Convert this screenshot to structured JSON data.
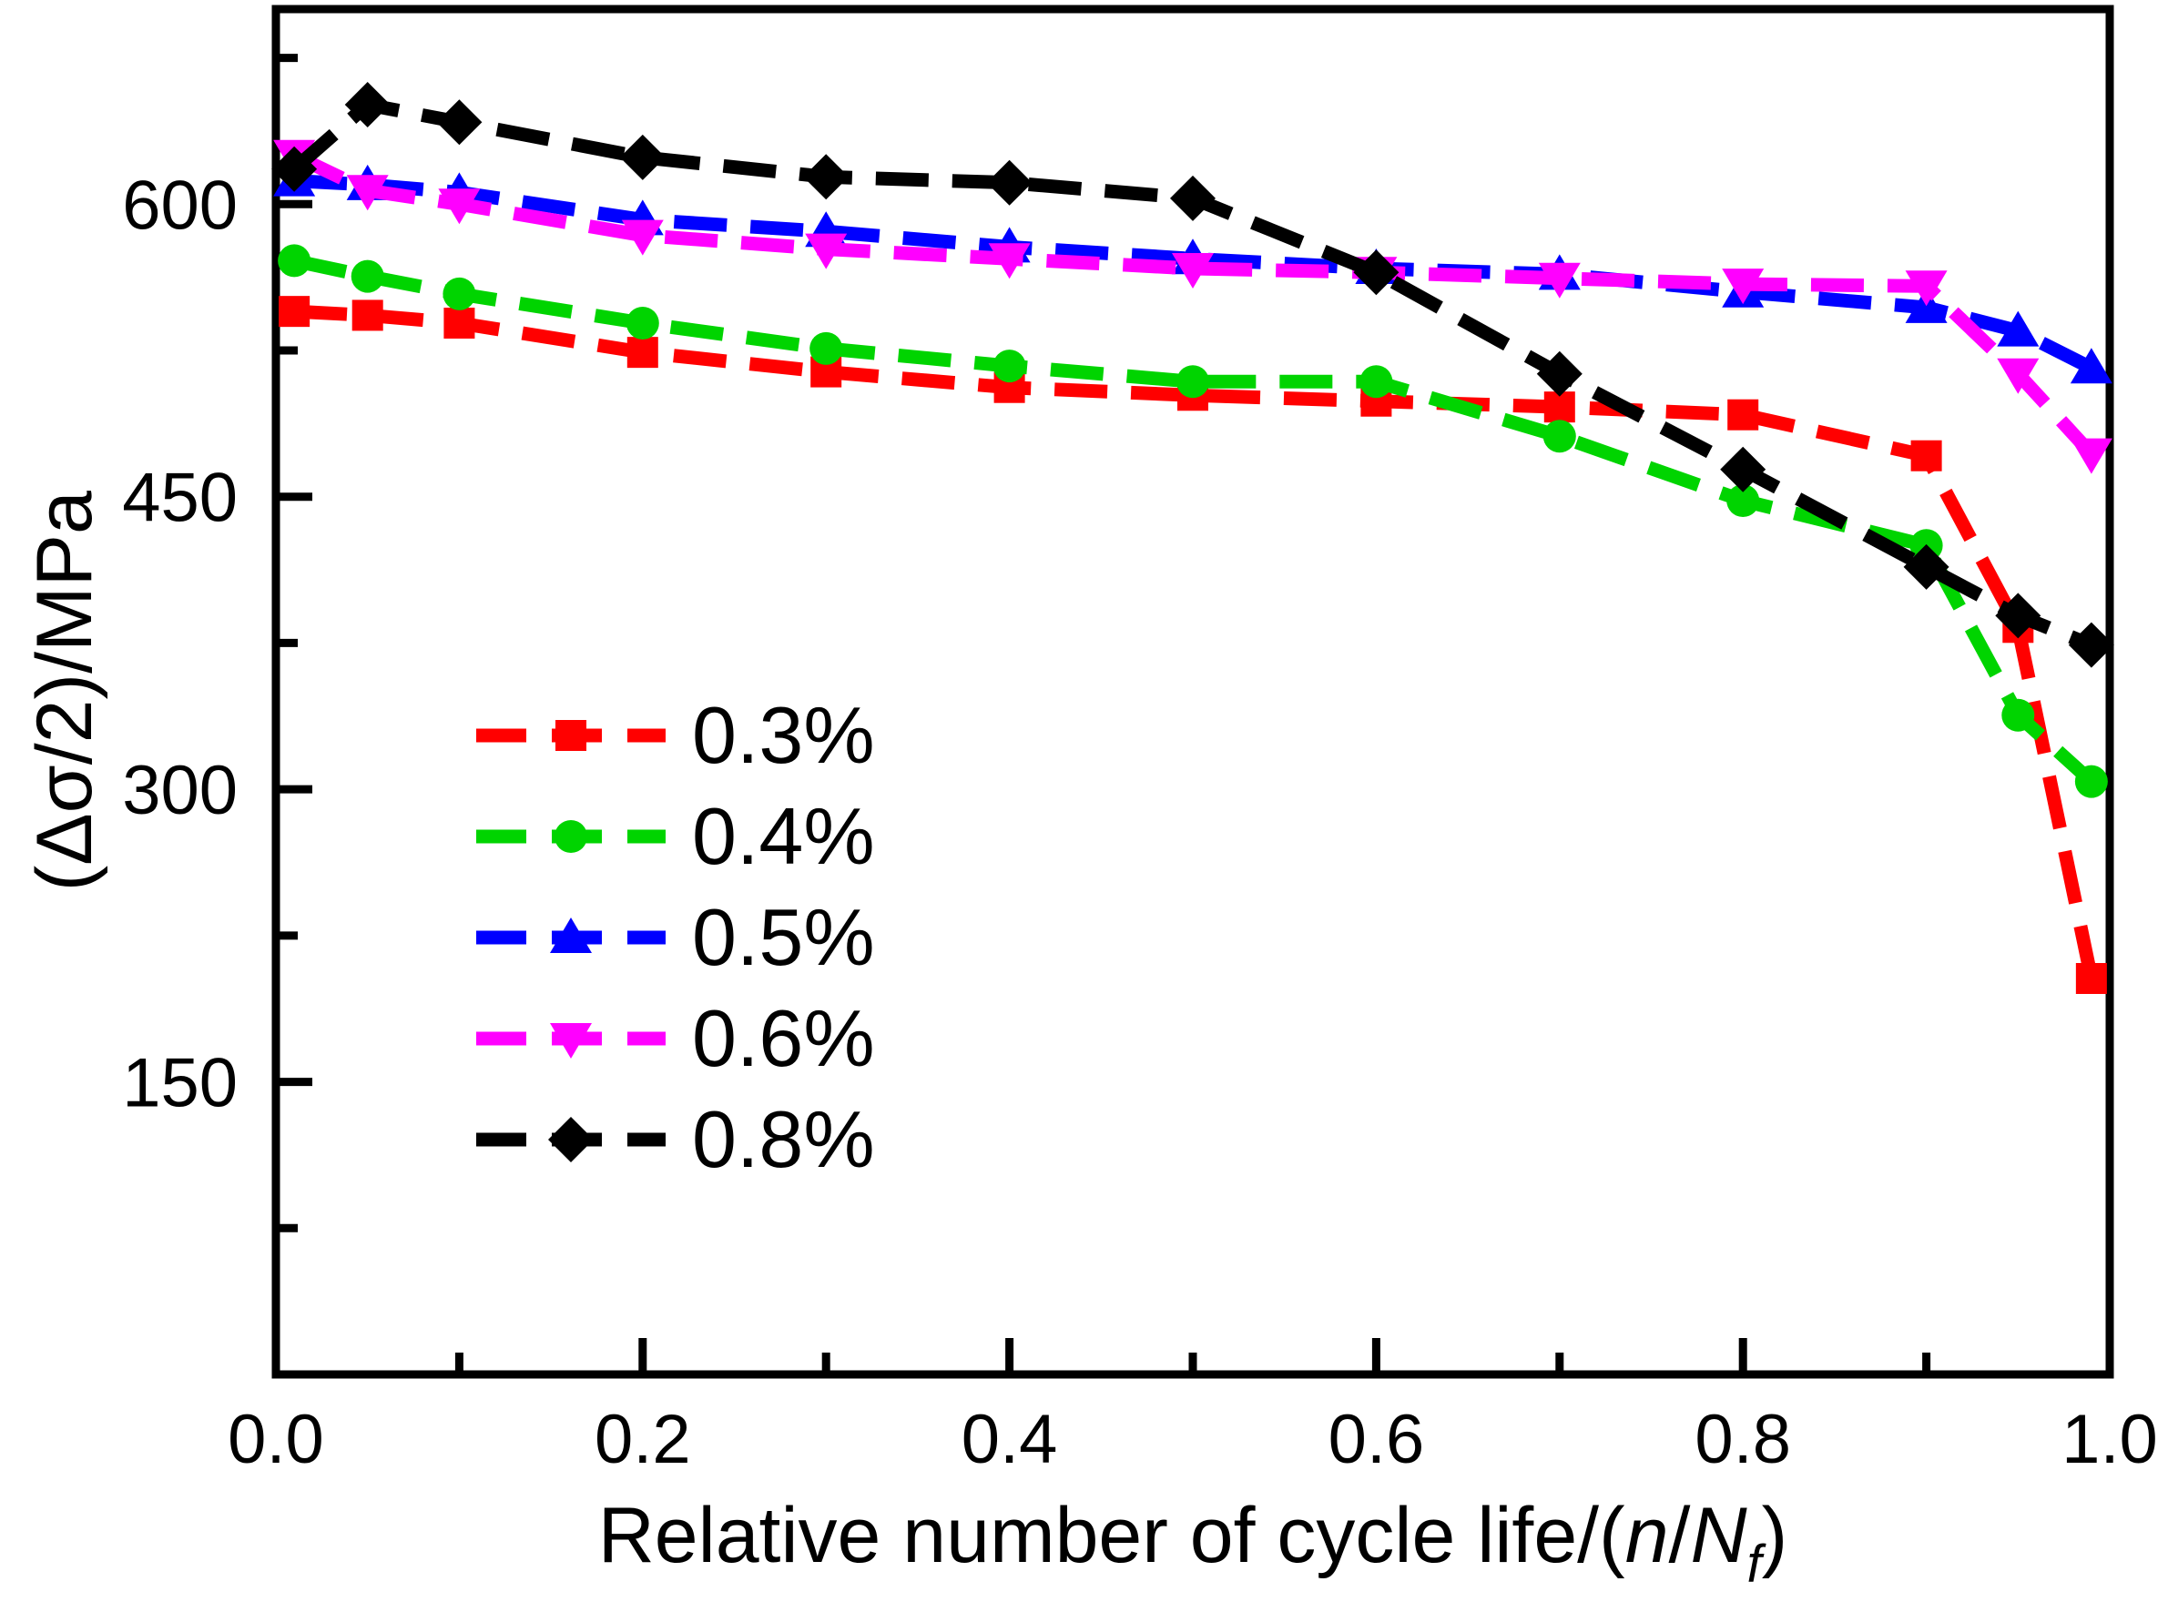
{
  "figure": {
    "background": "#ffffff",
    "axis_color": "#000000"
  },
  "chart_data": {
    "type": "line",
    "title": "",
    "xlabel": {
      "before": "Relative number of cycle life/(",
      "italic1": "n",
      "mid": "/",
      "italic2": "N",
      "subscript": "f",
      "after": ")"
    },
    "ylabel": "(Δσ/2)/MPa",
    "xlim": [
      0.0,
      1.0
    ],
    "ylim": [
      0,
      700
    ],
    "grid": false,
    "legend_position": "left-middle-inside",
    "x_major_ticks": [
      0.0,
      0.2,
      0.4,
      0.6,
      0.8,
      1.0
    ],
    "x_tick_labels": [
      "0.0",
      "0.2",
      "0.4",
      "0.6",
      "0.8",
      "1.0"
    ],
    "x_minor_ticks": [
      0.1,
      0.3,
      0.5,
      0.7,
      0.9
    ],
    "y_major_ticks": [
      150,
      300,
      450,
      600
    ],
    "y_tick_labels": [
      "150",
      "300",
      "450",
      "600"
    ],
    "y_minor_ticks": [
      75,
      225,
      375,
      525,
      675
    ],
    "x": [
      0.01,
      0.05,
      0.1,
      0.2,
      0.3,
      0.4,
      0.5,
      0.6,
      0.7,
      0.8,
      0.9,
      0.95,
      0.99
    ],
    "series": [
      {
        "name": "0.3%",
        "color": "#ff0000",
        "marker": "square",
        "values": [
          545,
          543,
          539,
          524,
          514,
          506,
          502,
          499,
          496,
          492,
          471,
          383,
          203
        ]
      },
      {
        "name": "0.4%",
        "color": "#00d400",
        "marker": "circle",
        "values": [
          571,
          563,
          554,
          539,
          526,
          517,
          509,
          509,
          481,
          448,
          425,
          338,
          304
        ]
      },
      {
        "name": "0.5%",
        "color": "#0000ff",
        "marker": "triangle-up",
        "values": [
          612,
          610,
          606,
          592,
          586,
          578,
          572,
          567,
          564,
          555,
          547,
          535,
          516
        ]
      },
      {
        "name": "0.6%",
        "color": "#ff00ff",
        "marker": "triangle-down",
        "values": [
          625,
          607,
          600,
          584,
          577,
          572,
          567,
          565,
          562,
          559,
          558,
          513,
          472
        ]
      },
      {
        "name": "0.8%",
        "color": "#000000",
        "marker": "diamond",
        "values": [
          618,
          651,
          642,
          624,
          614,
          611,
          603,
          565,
          513,
          464,
          414,
          389,
          374
        ]
      }
    ],
    "legend": {
      "labels": [
        "0.3%",
        "0.4%",
        "0.5%",
        "0.6%",
        "0.8%"
      ]
    }
  }
}
